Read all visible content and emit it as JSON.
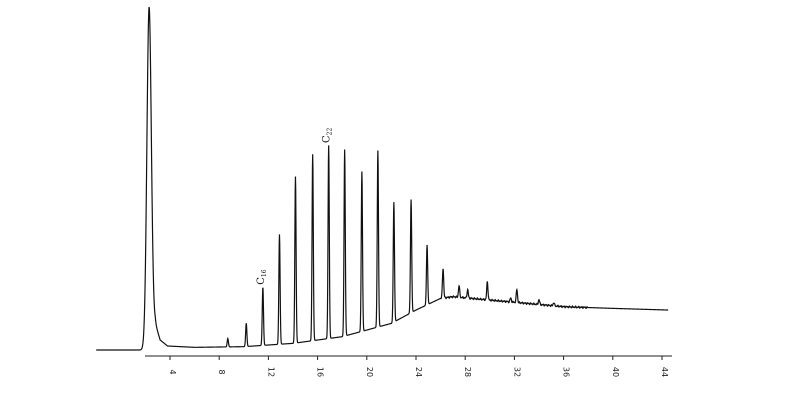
{
  "chart_data": {
    "type": "line",
    "title": "",
    "xlabel": "",
    "ylabel": "",
    "xlim": [
      -2,
      45
    ],
    "ylim": [
      0,
      100
    ],
    "x_ticks": [
      "4",
      "8",
      "12",
      "16",
      "20",
      "24",
      "28",
      "32",
      "36",
      "40",
      "44"
    ],
    "grid": false,
    "legend": "none",
    "colors": {
      "trace": "#111111",
      "axis": "#222222"
    },
    "series": [
      {
        "solvent_peak": {
          "x": 2.3,
          "height": 100
        },
        "baseline_points": [
          [
            -2,
            0
          ],
          [
            2.0,
            0
          ],
          [
            2.8,
            8
          ],
          [
            3.2,
            3
          ],
          [
            3.8,
            1.2
          ],
          [
            6,
            0.8
          ],
          [
            10,
            1
          ],
          [
            14,
            2
          ],
          [
            18,
            4
          ],
          [
            22,
            8
          ],
          [
            24,
            12
          ],
          [
            26,
            15.5
          ],
          [
            27,
            16
          ],
          [
            30,
            15
          ],
          [
            33,
            14
          ],
          [
            36,
            13
          ],
          [
            40,
            12.5
          ],
          [
            44.5,
            12
          ]
        ],
        "peaks": [
          {
            "x": 8.7,
            "height": 2.5
          },
          {
            "x": 10.2,
            "height": 7
          },
          {
            "x": 11.55,
            "height": 17.5,
            "label_main": "C",
            "label_sub": "16"
          },
          {
            "x": 12.9,
            "height": 33
          },
          {
            "x": 14.2,
            "height": 50
          },
          {
            "x": 15.6,
            "height": 56
          },
          {
            "x": 16.9,
            "height": 58,
            "label_main": "C",
            "label_sub": "22"
          },
          {
            "x": 18.2,
            "height": 56
          },
          {
            "x": 19.6,
            "height": 48
          },
          {
            "x": 20.9,
            "height": 53
          },
          {
            "x": 22.2,
            "height": 36
          },
          {
            "x": 23.6,
            "height": 34
          },
          {
            "x": 24.9,
            "height": 18
          },
          {
            "x": 26.2,
            "height": 9
          },
          {
            "x": 27.5,
            "height": 3.5
          },
          {
            "x": 28.2,
            "height": 2.5
          },
          {
            "x": 29.8,
            "height": 5.5
          },
          {
            "x": 31.7,
            "height": 1.2
          },
          {
            "x": 32.2,
            "height": 4
          },
          {
            "x": 34.0,
            "height": 1.5
          },
          {
            "x": 35.2,
            "height": 1
          }
        ]
      }
    ]
  }
}
